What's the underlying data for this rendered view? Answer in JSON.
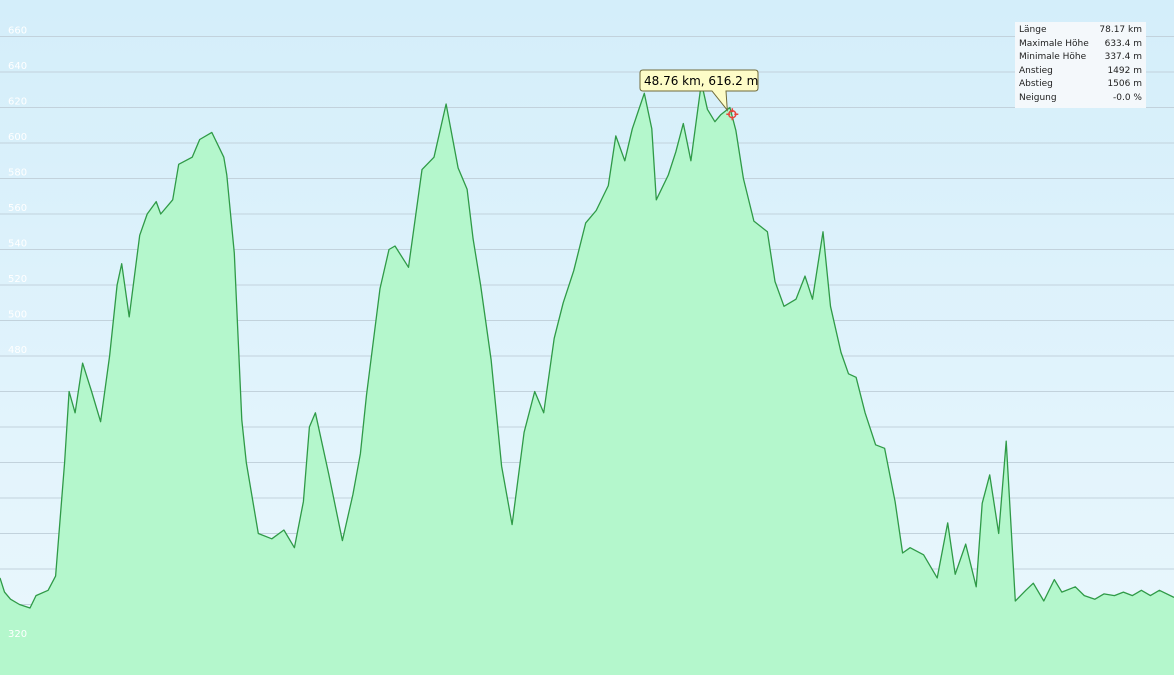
{
  "colors": {
    "background_top": "#d4eefa",
    "background_bottom": "#eaf7fd",
    "grid": "#c2d2dc",
    "area_fill": "#b4f7cc",
    "line": "#2f9a47",
    "tooltip_bg": "#fdfcc7",
    "marker": "#e8453c"
  },
  "stats": [
    {
      "label": "Länge",
      "value": "78.17 km"
    },
    {
      "label": "Maximale Höhe",
      "value": "633.4 m"
    },
    {
      "label": "Minimale Höhe",
      "value": "337.4 m"
    },
    {
      "label": "Anstieg",
      "value": "1492 m"
    },
    {
      "label": "Abstieg",
      "value": "1506 m"
    },
    {
      "label": "Neigung",
      "value": "-0.0 %"
    }
  ],
  "tooltip": {
    "text": "48.76 km, 616.2 m"
  },
  "chart_data": {
    "type": "area",
    "xlabel": "",
    "ylabel": "",
    "xunit": "km",
    "yunit": "m",
    "xlim": [
      0,
      78.17
    ],
    "ylim": [
      300,
      660
    ],
    "yticks": [
      320,
      340,
      360,
      380,
      400,
      420,
      440,
      460,
      480,
      500,
      520,
      540,
      560,
      580,
      600,
      620,
      640,
      660
    ],
    "ytick_labels": [
      "320",
      "",
      "",
      "",
      "",
      "",
      "",
      "",
      "480",
      "500",
      "520",
      "540",
      "560",
      "580",
      "600",
      "620",
      "640",
      "660"
    ],
    "grid": true,
    "legend": "none",
    "marker": {
      "x": 48.76,
      "y": 616.2
    },
    "x": [
      0.0,
      0.3,
      0.7,
      1.3,
      2.0,
      2.4,
      3.2,
      3.7,
      4.3,
      4.6,
      5.0,
      5.5,
      6.1,
      6.7,
      7.3,
      7.8,
      8.1,
      8.6,
      9.3,
      9.8,
      10.4,
      10.7,
      11.5,
      11.9,
      12.8,
      13.3,
      14.1,
      14.9,
      15.1,
      15.6,
      16.1,
      16.4,
      17.2,
      18.1,
      18.9,
      19.6,
      20.2,
      20.6,
      21.0,
      21.9,
      22.8,
      23.5,
      24.0,
      24.4,
      25.3,
      25.9,
      26.3,
      27.2,
      28.1,
      28.9,
      29.7,
      30.5,
      31.1,
      31.5,
      32.0,
      32.7,
      33.4,
      34.1,
      34.9,
      35.6,
      36.2,
      36.9,
      37.5,
      38.2,
      39.0,
      39.7,
      40.5,
      41.0,
      41.6,
      42.1,
      42.9,
      43.4,
      43.7,
      44.5,
      45.0,
      45.5,
      46.0,
      46.7,
      47.1,
      47.6,
      48.0,
      48.6,
      49.0,
      49.5,
      50.2,
      51.1,
      51.6,
      52.2,
      53.0,
      53.6,
      54.1,
      54.8,
      55.3,
      56.0,
      56.5,
      57.0,
      57.6,
      58.3,
      58.9,
      59.6,
      60.1,
      60.6,
      61.5,
      62.4,
      63.1,
      63.6,
      64.3,
      65.0,
      65.4,
      65.9,
      66.5,
      67.0,
      67.6,
      68.3,
      68.8,
      69.5,
      70.2,
      70.7,
      71.6,
      72.2,
      72.9,
      73.5,
      74.2,
      74.8,
      75.4,
      76.0,
      76.6,
      77.2,
      78.17
    ],
    "y": [
      355,
      347,
      343,
      340,
      338,
      345,
      348,
      356,
      420,
      460,
      448,
      476,
      460,
      443,
      480,
      520,
      532,
      502,
      548,
      560,
      567,
      560,
      568,
      588,
      592,
      602,
      606,
      592,
      582,
      538,
      444,
      420,
      380,
      377,
      382,
      372,
      398,
      440,
      448,
      413,
      376,
      402,
      425,
      458,
      518,
      540,
      542,
      530,
      585,
      592,
      622,
      586,
      574,
      546,
      520,
      478,
      418,
      385,
      437,
      460,
      448,
      490,
      510,
      528,
      555,
      562,
      576,
      604,
      590,
      608,
      628,
      608,
      568,
      582,
      595,
      611,
      590,
      634,
      619,
      612,
      616,
      620,
      607,
      580,
      556,
      550,
      522,
      508,
      512,
      525,
      512,
      550,
      508,
      482,
      470,
      468,
      448,
      430,
      428,
      398,
      369,
      372,
      368,
      355,
      386,
      357,
      374,
      350,
      397,
      413,
      380,
      432,
      342,
      348,
      352,
      342,
      354,
      347,
      350,
      345,
      343,
      346,
      345,
      347,
      345,
      348,
      345,
      348,
      344
    ]
  }
}
